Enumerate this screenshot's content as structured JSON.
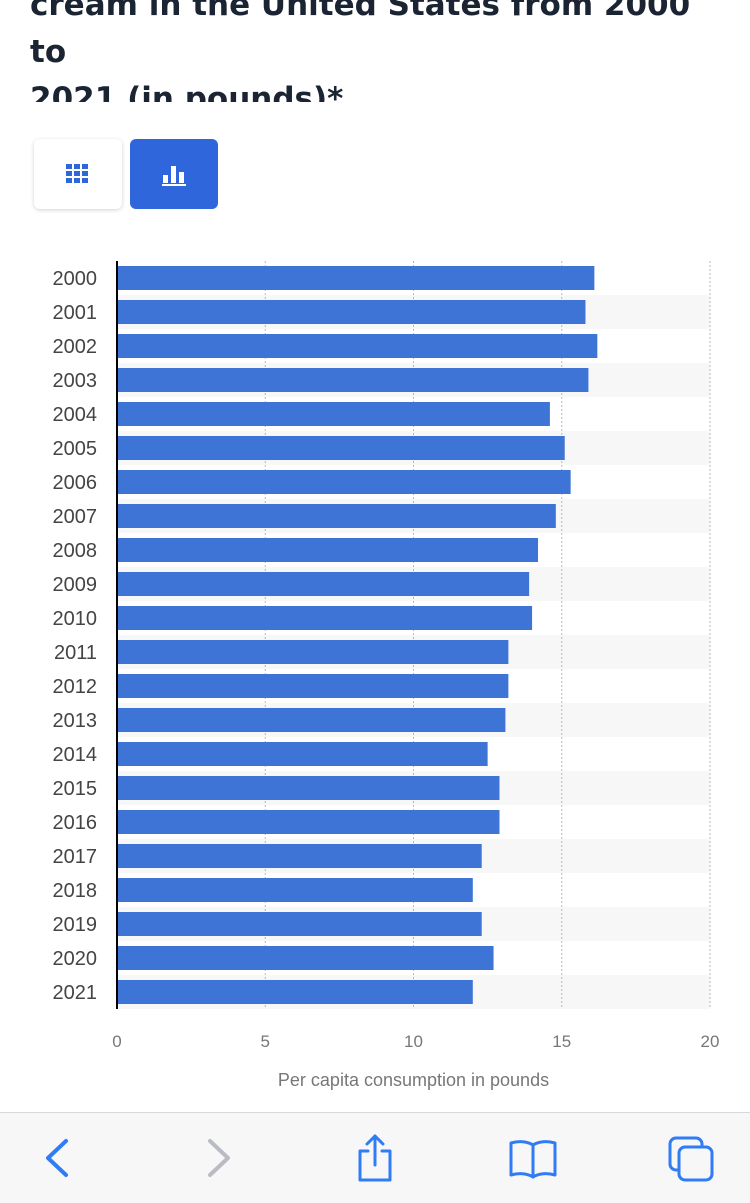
{
  "title": {
    "line1": "cream in the United States from 2000 to",
    "line2": "2021 (in pounds)*"
  },
  "view_toggle": {
    "table_icon": "grid-icon",
    "chart_icon": "bar-chart-icon",
    "active": "chart"
  },
  "chart_data": {
    "type": "bar",
    "orientation": "horizontal",
    "categories": [
      "2000",
      "2001",
      "2002",
      "2003",
      "2004",
      "2005",
      "2006",
      "2007",
      "2008",
      "2009",
      "2010",
      "2011",
      "2012",
      "2013",
      "2014",
      "2015",
      "2016",
      "2017",
      "2018",
      "2019",
      "2020",
      "2021"
    ],
    "values": [
      16.1,
      15.8,
      16.2,
      15.9,
      14.6,
      15.1,
      15.3,
      14.8,
      14.2,
      13.9,
      14.0,
      13.2,
      13.2,
      13.1,
      12.5,
      12.9,
      12.9,
      12.3,
      12.0,
      12.3,
      12.7,
      12.0
    ],
    "xlim": [
      0,
      20
    ],
    "xticks": [
      0,
      5,
      10,
      15,
      20
    ],
    "xlabel": "Per capita consumption in pounds",
    "ylabel": "",
    "bar_color": "#3d74d6",
    "grid": "vertical dotted"
  },
  "toolbar": {
    "back_icon": "chevron-left-icon",
    "forward_icon": "chevron-right-icon",
    "share_icon": "share-icon",
    "bookmarks_icon": "book-icon",
    "tabs_icon": "tabs-icon",
    "accent": "#2f7cf6",
    "disabled": "#b9bcc2"
  }
}
